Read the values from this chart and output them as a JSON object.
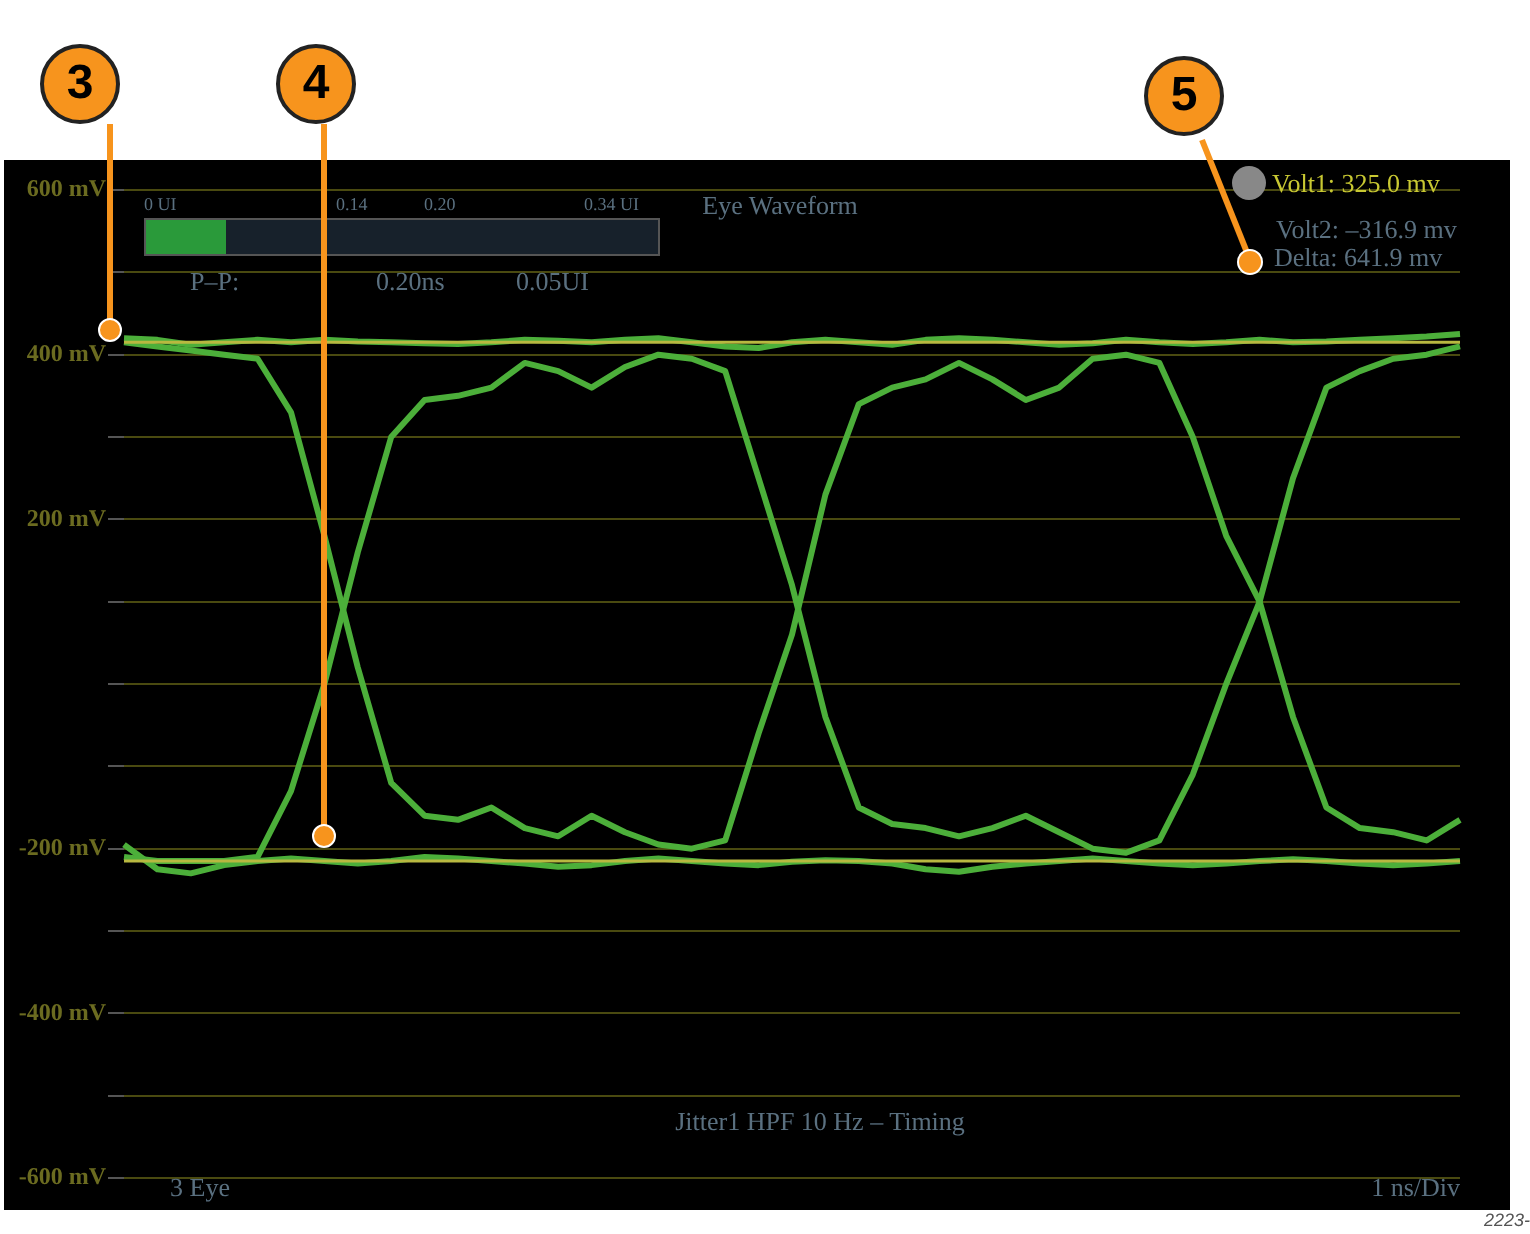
{
  "chart_data": {
    "type": "line",
    "title": "Eye Waveform",
    "categories": [
      null,
      null,
      null,
      null,
      null,
      null,
      null,
      null,
      null,
      null,
      null,
      null,
      null,
      null,
      null,
      null,
      null,
      null,
      null,
      null,
      null,
      null,
      null,
      null,
      null,
      null,
      null,
      null,
      null,
      null,
      null,
      null,
      null,
      null,
      null,
      null,
      null,
      null,
      null,
      null,
      null
    ],
    "series": [
      {
        "color": "#4caf3a",
        "values": [
          415,
          410,
          405,
          400,
          395,
          330,
          180,
          20,
          -120,
          -160,
          -165,
          -150,
          -175,
          -185,
          -160,
          -180,
          -195,
          -200,
          -190,
          -60,
          60,
          230,
          340,
          360,
          370,
          390,
          370,
          345,
          360,
          395,
          400,
          390,
          300,
          180,
          100,
          -40,
          -150,
          -175,
          -180,
          -190,
          -165
        ]
      },
      {
        "color": "#4caf3a",
        "values": [
          -210,
          -215,
          -215,
          -215,
          -210,
          -130,
          0,
          160,
          300,
          345,
          350,
          360,
          390,
          380,
          360,
          385,
          400,
          395,
          380,
          250,
          120,
          -40,
          -150,
          -170,
          -175,
          -185,
          -175,
          -160,
          -180,
          -200,
          -205,
          -190,
          -110,
          0,
          100,
          250,
          360,
          380,
          395,
          400,
          410
        ]
      },
      {
        "color": "#4caf3a",
        "values": [
          420,
          418,
          412,
          415,
          418,
          415,
          418,
          416,
          415,
          414,
          413,
          415,
          418,
          417,
          415,
          418,
          420,
          415,
          410,
          408,
          415,
          418,
          415,
          412,
          418,
          420,
          418,
          415,
          412,
          414,
          418,
          415,
          413,
          415,
          418,
          415,
          416,
          418,
          420,
          422,
          425
        ]
      },
      {
        "color": "#4caf3a",
        "values": [
          -195,
          -225,
          -230,
          -220,
          -215,
          -212,
          -215,
          -218,
          -215,
          -210,
          -212,
          -215,
          -218,
          -222,
          -220,
          -215,
          -212,
          -215,
          -218,
          -220,
          -216,
          -214,
          -215,
          -218,
          -225,
          -228,
          -222,
          -218,
          -215,
          -212,
          -215,
          -218,
          -220,
          -218,
          -215,
          -213,
          -215,
          -218,
          -220,
          -218,
          -215
        ]
      }
    ],
    "ylim": [
      -600,
      600
    ],
    "yticks": [
      {
        "value": -600,
        "label": "-600 mV"
      },
      {
        "value": -500,
        "label": null
      },
      {
        "value": -400,
        "label": "-400 mV"
      },
      {
        "value": -300,
        "label": null
      },
      {
        "value": -200,
        "label": "-200 mV"
      },
      {
        "value": -100,
        "label": null
      },
      {
        "value": 0,
        "label": null
      },
      {
        "value": 100,
        "label": null
      },
      {
        "value": 200,
        "label": "200 mV"
      },
      {
        "value": 300,
        "label": null
      },
      {
        "value": 400,
        "label": "400 mV"
      },
      {
        "value": 500,
        "label": null
      },
      {
        "value": 600,
        "label": "600 mV"
      }
    ],
    "grid": "y",
    "legend": false,
    "tick_labels": "y",
    "marker": "none",
    "line_style": "solid",
    "ref_lines": [
      {
        "axis": "y",
        "value": 415,
        "color": "#b8b840"
      },
      {
        "axis": "y",
        "value": -215,
        "color": "#b8b840"
      }
    ],
    "annotations": [
      "Volt1: 325.0 mv",
      "Volt2: –316.9 mv",
      "Delta: 641.9 mv",
      "P–P:",
      "0.20ns",
      "0.05UI",
      "0 UI",
      "0.14",
      "0.20",
      "0.34 UI",
      "Jitter1 HPF 10 Hz – Timing",
      "3 Eye",
      "1 ns/Div",
      "3",
      "4",
      "5",
      "2223-"
    ]
  }
}
